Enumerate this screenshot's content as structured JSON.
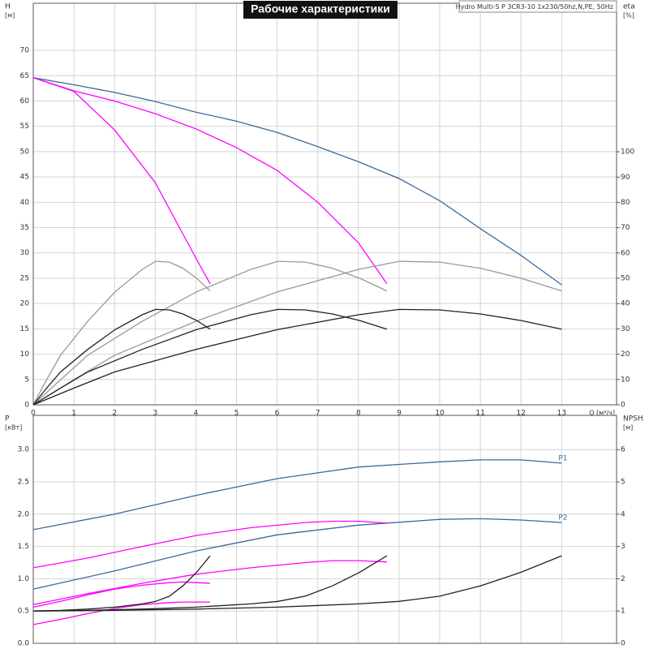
{
  "header": {
    "product": "Hydro Multi-S P 3CR3-10 1x230/50hz,N,PE, 50Hz"
  },
  "chart_data": [
    {
      "type": "line",
      "title": "Рабочие характеристики",
      "ylabel": [
        "H",
        "[м]"
      ],
      "y2label": [
        "eta",
        "[%]"
      ],
      "xlabel": "Q [м³/ч]",
      "xlim": [
        0,
        14.35
      ],
      "xticks": [
        0,
        1,
        2,
        3,
        4,
        5,
        6,
        7,
        8,
        9,
        10,
        11,
        12,
        13
      ],
      "xtick_labels": true,
      "ylim": [
        0,
        79.3
      ],
      "yticks": [
        0,
        5,
        10,
        15,
        20,
        25,
        30,
        35,
        40,
        45,
        50,
        55,
        60,
        65,
        70
      ],
      "y2lim": [
        0,
        158.7
      ],
      "y2ticks": [
        0,
        10,
        20,
        30,
        40,
        50,
        60,
        70,
        80,
        90,
        100
      ],
      "grid": true,
      "series": [
        {
          "color": "#3a6a9a",
          "x": [
            0,
            1,
            2,
            3,
            4,
            5,
            6,
            7,
            8,
            9,
            10,
            11,
            12,
            13
          ],
          "values": [
            64.6,
            63.2,
            61.7,
            59.9,
            57.8,
            56.0,
            53.8,
            51.0,
            48.0,
            44.7,
            40.3,
            34.8,
            29.5,
            23.7
          ]
        },
        {
          "color": "#ff00ff",
          "x": [
            0,
            1,
            2,
            3,
            4,
            5,
            6,
            7,
            8,
            8.7
          ],
          "values": [
            64.6,
            62,
            60,
            57.5,
            54.5,
            50.8,
            46.3,
            40,
            32,
            23.9
          ]
        },
        {
          "color": "#ff00ff",
          "x": [
            0,
            1,
            2,
            3,
            4,
            4.35
          ],
          "values": [
            64.6,
            61.9,
            54.3,
            43.9,
            29,
            23.9
          ]
        },
        {
          "color": "#999999",
          "axis": "y2",
          "x": [
            0,
            1,
            2,
            4,
            6,
            8,
            9,
            10,
            11,
            12,
            13
          ],
          "values": [
            0,
            9.9,
            19.6,
            33,
            44.6,
            53.5,
            56.7,
            56.4,
            54,
            50,
            45
          ]
        },
        {
          "color": "#999999",
          "axis": "y2",
          "x": [
            0,
            0.67,
            1.34,
            2.68,
            4.01,
            5.35,
            6.02,
            6.69,
            7.36,
            8.03,
            8.7
          ],
          "values": [
            0,
            9.9,
            19.6,
            33,
            44.6,
            53.5,
            56.7,
            56.4,
            54,
            50,
            45
          ]
        },
        {
          "color": "#999999",
          "axis": "y2",
          "x": [
            0,
            0.33,
            0.67,
            1.34,
            2.01,
            2.68,
            3.01,
            3.35,
            3.68,
            4.02,
            4.35
          ],
          "values": [
            0,
            9.9,
            19.6,
            33,
            44.6,
            53.5,
            56.7,
            56.4,
            54,
            50,
            45
          ]
        },
        {
          "color": "#222222",
          "axis": "y2",
          "x": [
            0,
            1,
            2,
            4,
            6,
            8,
            9,
            10,
            11,
            12,
            13
          ],
          "values": [
            0,
            6.6,
            13,
            21.9,
            29.7,
            35.6,
            37.7,
            37.5,
            35.9,
            33.3,
            29.9
          ]
        },
        {
          "color": "#222222",
          "axis": "y2",
          "x": [
            0,
            0.67,
            1.34,
            2.68,
            4.01,
            5.35,
            6.02,
            6.69,
            7.36,
            8.03,
            8.7
          ],
          "values": [
            0,
            6.6,
            13,
            21.9,
            29.7,
            35.6,
            37.7,
            37.5,
            35.9,
            33.3,
            29.9
          ]
        },
        {
          "color": "#222222",
          "axis": "y2",
          "x": [
            0,
            0.33,
            0.67,
            1.34,
            2.01,
            2.68,
            3.01,
            3.35,
            3.68,
            4.02,
            4.35
          ],
          "values": [
            0,
            6.6,
            13,
            21.9,
            29.7,
            35.6,
            37.7,
            37.5,
            35.9,
            33.3,
            29.9
          ]
        }
      ]
    },
    {
      "type": "line",
      "ylabel": [
        "P",
        "[кВт]"
      ],
      "y2label": [
        "NPSH",
        "[м]"
      ],
      "xlim": [
        0,
        14.35
      ],
      "xticks": [
        0,
        1,
        2,
        3,
        4,
        5,
        6,
        7,
        8,
        9,
        10,
        11,
        12,
        13
      ],
      "xtick_labels": false,
      "ylim": [
        0,
        3.53
      ],
      "yticks": [
        {
          "value": 0,
          "label": "0.0"
        },
        0.5,
        {
          "value": 1,
          "label": "1.0"
        },
        1.5,
        {
          "value": 2,
          "label": "2.0"
        },
        2.5,
        {
          "value": 3,
          "label": "3.0"
        }
      ],
      "y2lim": [
        0,
        7.06
      ],
      "y2ticks": [
        0,
        1,
        2,
        3,
        4,
        5,
        6
      ],
      "grid": true,
      "series": [
        {
          "label": "P1",
          "color": "#3a6a9a",
          "x": [
            0,
            2,
            4,
            6,
            8,
            10,
            11,
            12,
            13
          ],
          "values": [
            1.76,
            2.0,
            2.29,
            2.55,
            2.73,
            2.81,
            2.84,
            2.84,
            2.79
          ]
        },
        {
          "label": "P2",
          "color": "#3a6a9a",
          "x": [
            0,
            2,
            4,
            6,
            8,
            10,
            11,
            12,
            13
          ],
          "values": [
            0.84,
            1.12,
            1.43,
            1.68,
            1.83,
            1.92,
            1.93,
            1.91,
            1.87
          ]
        },
        {
          "color": "#ff00ff",
          "x": [
            0,
            1.34,
            2.68,
            4.01,
            5.35,
            6.69,
            7.36,
            8.03,
            8.7
          ],
          "values": [
            1.17,
            1.32,
            1.5,
            1.67,
            1.79,
            1.87,
            1.89,
            1.89,
            1.86
          ]
        },
        {
          "color": "#ff00ff",
          "x": [
            0,
            1.34,
            2.68,
            4.01,
            5.35,
            6.69,
            7.36,
            8.03,
            8.7
          ],
          "values": [
            0.6,
            0.77,
            0.93,
            1.07,
            1.17,
            1.25,
            1.28,
            1.28,
            1.26
          ]
        },
        {
          "color": "#ff00ff",
          "x": [
            0,
            0.67,
            1.34,
            2.01,
            2.68,
            3.35,
            3.68,
            4.02,
            4.35
          ],
          "values": [
            0.56,
            0.65,
            0.75,
            0.84,
            0.9,
            0.94,
            0.95,
            0.94,
            0.93
          ]
        },
        {
          "color": "#ff00ff",
          "x": [
            0,
            0.67,
            1.34,
            2.01,
            2.68,
            3.35,
            3.68,
            4.02,
            4.35
          ],
          "values": [
            0.29,
            0.37,
            0.46,
            0.54,
            0.6,
            0.63,
            0.64,
            0.64,
            0.64
          ]
        },
        {
          "color": "#222222",
          "axis": "y2",
          "x": [
            0,
            2,
            4,
            6,
            8,
            9,
            10,
            11,
            12,
            13
          ],
          "values": [
            1.0,
            1.02,
            1.06,
            1.12,
            1.22,
            1.3,
            1.46,
            1.78,
            2.2,
            2.71
          ]
        },
        {
          "color": "#222222",
          "axis": "y2",
          "x": [
            0,
            1.34,
            2.68,
            4.01,
            5.35,
            6.02,
            6.69,
            7.36,
            8.03,
            8.7
          ],
          "values": [
            1.0,
            1.02,
            1.06,
            1.12,
            1.22,
            1.3,
            1.46,
            1.78,
            2.2,
            2.71
          ]
        },
        {
          "color": "#222222",
          "axis": "y2",
          "x": [
            0,
            0.67,
            1.34,
            2.01,
            2.68,
            3.01,
            3.35,
            3.68,
            4.02,
            4.35
          ],
          "values": [
            1.0,
            1.02,
            1.06,
            1.12,
            1.22,
            1.3,
            1.46,
            1.78,
            2.2,
            2.71
          ]
        }
      ]
    }
  ]
}
